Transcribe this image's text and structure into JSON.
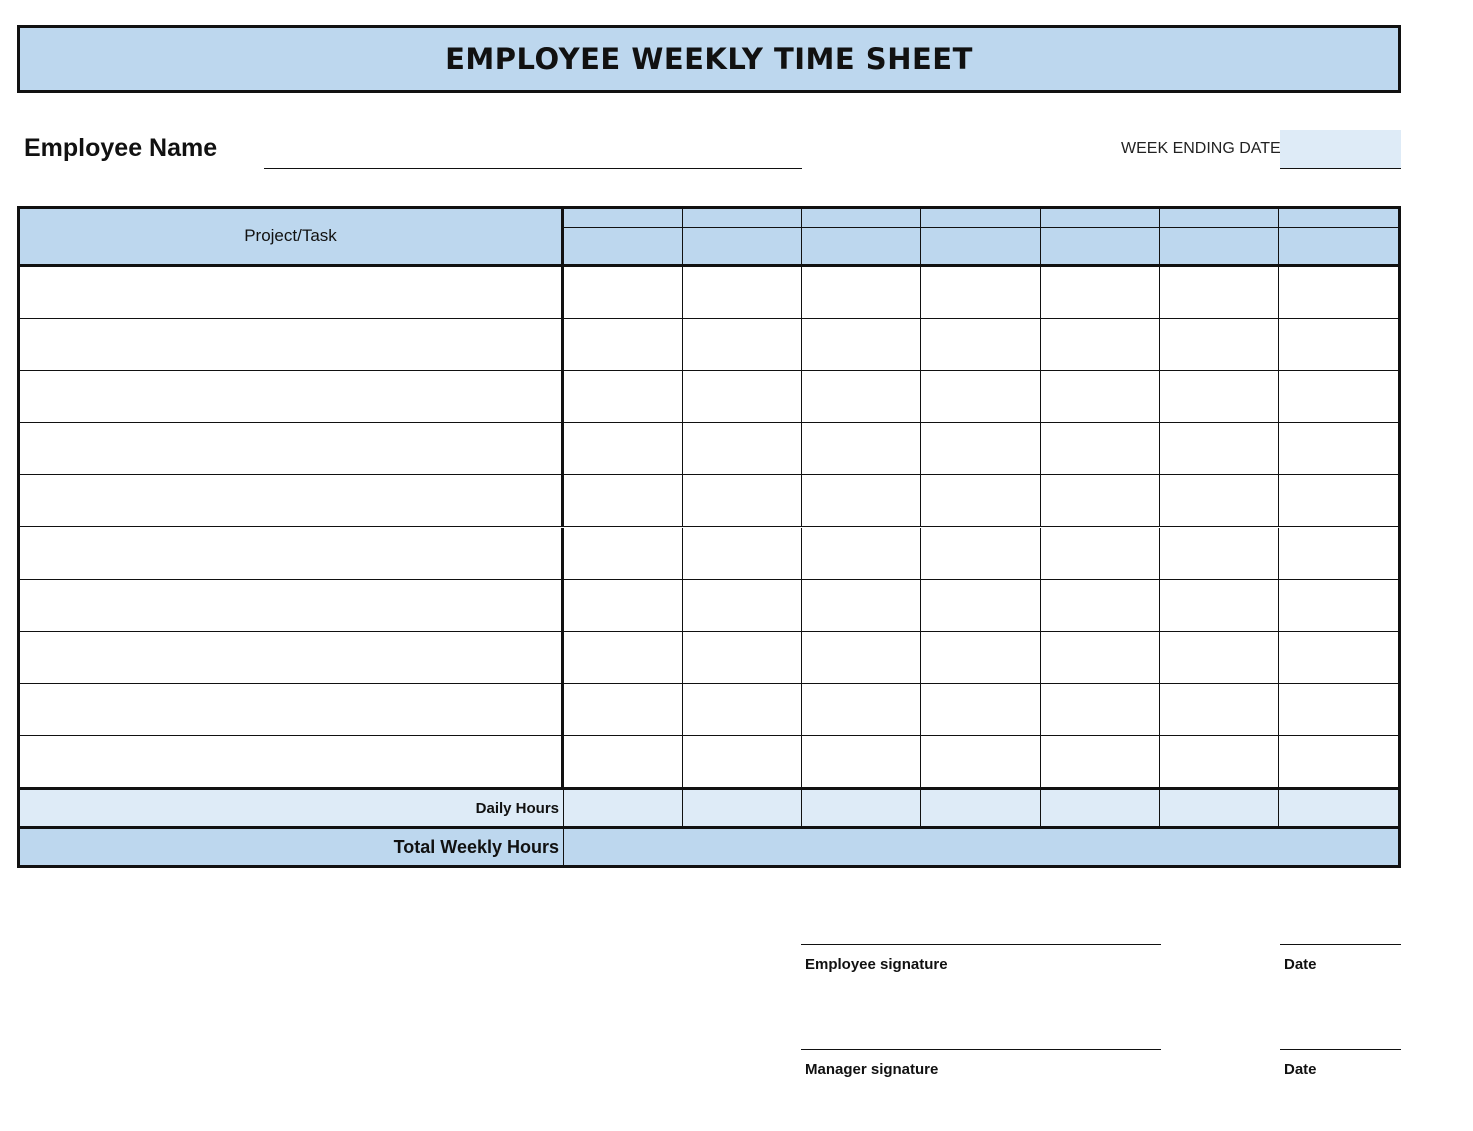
{
  "title": "EMPLOYEE WEEKLY TIME SHEET",
  "employee_name": {
    "label": "Employee Name",
    "value": ""
  },
  "week_ending": {
    "label": "WEEK ENDING DATE:",
    "value": ""
  },
  "table": {
    "project_header": "Project/Task",
    "day_columns": 7,
    "row_count": 10,
    "daily_hours_label": "Daily Hours",
    "total_label": "Total Weekly Hours"
  },
  "signatures": {
    "employee_label": "Employee signature",
    "manager_label": "Manager signature",
    "date_label": "Date"
  },
  "colors": {
    "header_fill": "#bdd7ee",
    "light_fill": "#deebf7",
    "border": "#111111"
  }
}
